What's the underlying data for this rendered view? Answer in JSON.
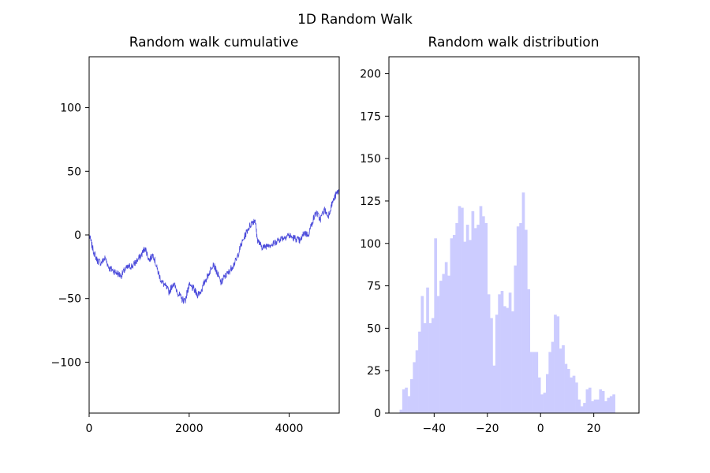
{
  "figure": {
    "suptitle": "1D Random Walk"
  },
  "chart_data": [
    {
      "type": "line",
      "title": "Random walk cumulative",
      "xlabel": "",
      "ylabel": "",
      "xlim": [
        0,
        5000
      ],
      "ylim": [
        -140,
        140
      ],
      "xticks": [
        0,
        2000,
        4000
      ],
      "yticks": [
        -100,
        -50,
        0,
        50,
        100
      ],
      "ytick_labels": [
        "−100",
        "−50",
        "0",
        "50",
        "100"
      ],
      "grid": false,
      "color": "#0000cc",
      "series": [
        {
          "x": [
            0,
            80,
            160,
            240,
            320,
            400,
            480,
            560,
            640,
            720,
            800,
            880,
            960,
            1040,
            1120,
            1200,
            1280,
            1360,
            1440,
            1520,
            1600,
            1680,
            1760,
            1840,
            1920,
            1960,
            2000,
            2080,
            2160,
            2240,
            2320,
            2400,
            2480,
            2560,
            2640,
            2700,
            2780,
            2860,
            2940,
            3020,
            3100,
            3180,
            3260,
            3320,
            3360,
            3420,
            3500,
            3580,
            3660,
            3740,
            3820,
            3900,
            3980,
            4060,
            4140,
            4220,
            4300,
            4380,
            4460,
            4540,
            4620,
            4700,
            4780,
            4860,
            4940,
            5000
          ],
          "y": [
            0,
            -12,
            -20,
            -22,
            -18,
            -26,
            -28,
            -30,
            -32,
            -27,
            -25,
            -24,
            -20,
            -16,
            -10,
            -20,
            -15,
            -27,
            -36,
            -40,
            -45,
            -38,
            -44,
            -50,
            -52,
            -45,
            -40,
            -42,
            -47,
            -44,
            -36,
            -30,
            -22,
            -30,
            -38,
            -33,
            -30,
            -25,
            -20,
            -10,
            -2,
            5,
            10,
            12,
            -3,
            -8,
            -10,
            -7,
            -8,
            -5,
            -3,
            -2,
            0,
            -2,
            -3,
            -5,
            2,
            0,
            10,
            18,
            12,
            20,
            15,
            25,
            32,
            35
          ]
        }
      ]
    },
    {
      "type": "bar",
      "title": "Random walk distribution",
      "xlabel": "",
      "ylabel": "",
      "xlim": [
        -57,
        37
      ],
      "ylim": [
        0,
        210
      ],
      "xticks": [
        -40,
        -20,
        0,
        20
      ],
      "xtick_labels": [
        "−40",
        "−20",
        "0",
        "20"
      ],
      "yticks": [
        0,
        25,
        50,
        75,
        100,
        125,
        150,
        175,
        200
      ],
      "grid": false,
      "color": "#ccccff",
      "bin_start": -53,
      "bin_width": 1,
      "values": [
        2,
        14,
        15,
        10,
        20,
        30,
        37,
        48,
        69,
        53,
        74,
        53,
        56,
        103,
        69,
        78,
        82,
        89,
        81,
        103,
        105,
        112,
        122,
        121,
        101,
        111,
        102,
        119,
        109,
        111,
        122,
        116,
        112,
        70,
        56,
        28,
        58,
        70,
        72,
        63,
        62,
        71,
        60,
        87,
        110,
        112,
        130,
        108,
        73,
        36,
        36,
        36,
        21,
        11,
        12,
        23,
        36,
        42,
        58,
        57,
        38,
        40,
        29,
        26,
        21,
        22,
        18,
        8,
        4,
        6,
        14,
        15,
        7,
        8,
        8,
        14,
        13,
        7,
        9,
        10,
        11
      ]
    }
  ]
}
